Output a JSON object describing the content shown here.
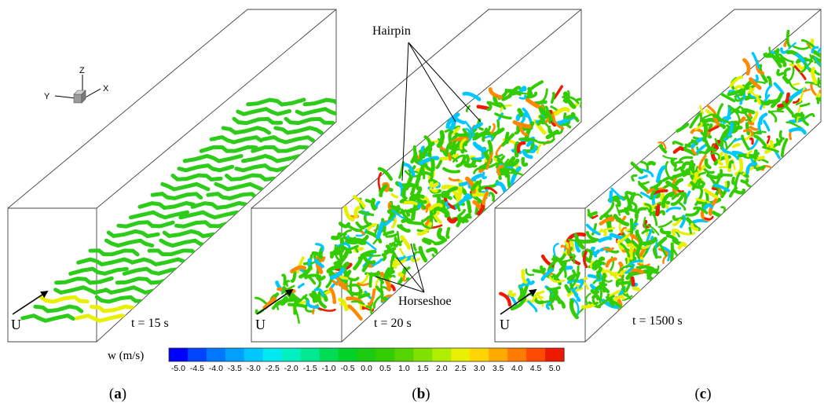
{
  "axes_triad": {
    "z": "Z",
    "y": "Y",
    "x": "X"
  },
  "panels": [
    {
      "id": "a",
      "letter": "a",
      "time_label": "t = 15 s",
      "flow_label": "U"
    },
    {
      "id": "b",
      "letter": "b",
      "time_label": "t = 20 s",
      "flow_label": "U",
      "annotations": [
        {
          "text": "Hairpin"
        },
        {
          "text": "Horseshoe"
        }
      ]
    },
    {
      "id": "c",
      "letter": "c",
      "time_label": "t = 1500 s",
      "flow_label": "U"
    }
  ],
  "colorbar": {
    "label": "w (m/s)",
    "ticks": [
      "-5.0",
      "-4.5",
      "-4.0",
      "-3.5",
      "-3.0",
      "-2.5",
      "-2.0",
      "-1.5",
      "-1.0",
      "-0.5",
      "0.0",
      "0.5",
      "1.0",
      "1.5",
      "2.0",
      "2.5",
      "3.0",
      "3.5",
      "4.0",
      "4.5",
      "5.0"
    ],
    "colors": [
      "#0000ff",
      "#0044ff",
      "#0077ff",
      "#00a0ff",
      "#00c8ff",
      "#00e8f0",
      "#00f0c0",
      "#00e890",
      "#00dd55",
      "#00d22a",
      "#1ccc10",
      "#33cc00",
      "#55d400",
      "#80e000",
      "#b0ee00",
      "#e8f000",
      "#ffd400",
      "#ffaa00",
      "#ff7a00",
      "#ff4a00",
      "#ee1a00"
    ]
  },
  "palette": {
    "green": "#33cc00",
    "cyan": "#00c8ff",
    "yellow": "#e8f000",
    "orange": "#ff8800",
    "red": "#ee1a00",
    "blue": "#0044ff"
  }
}
